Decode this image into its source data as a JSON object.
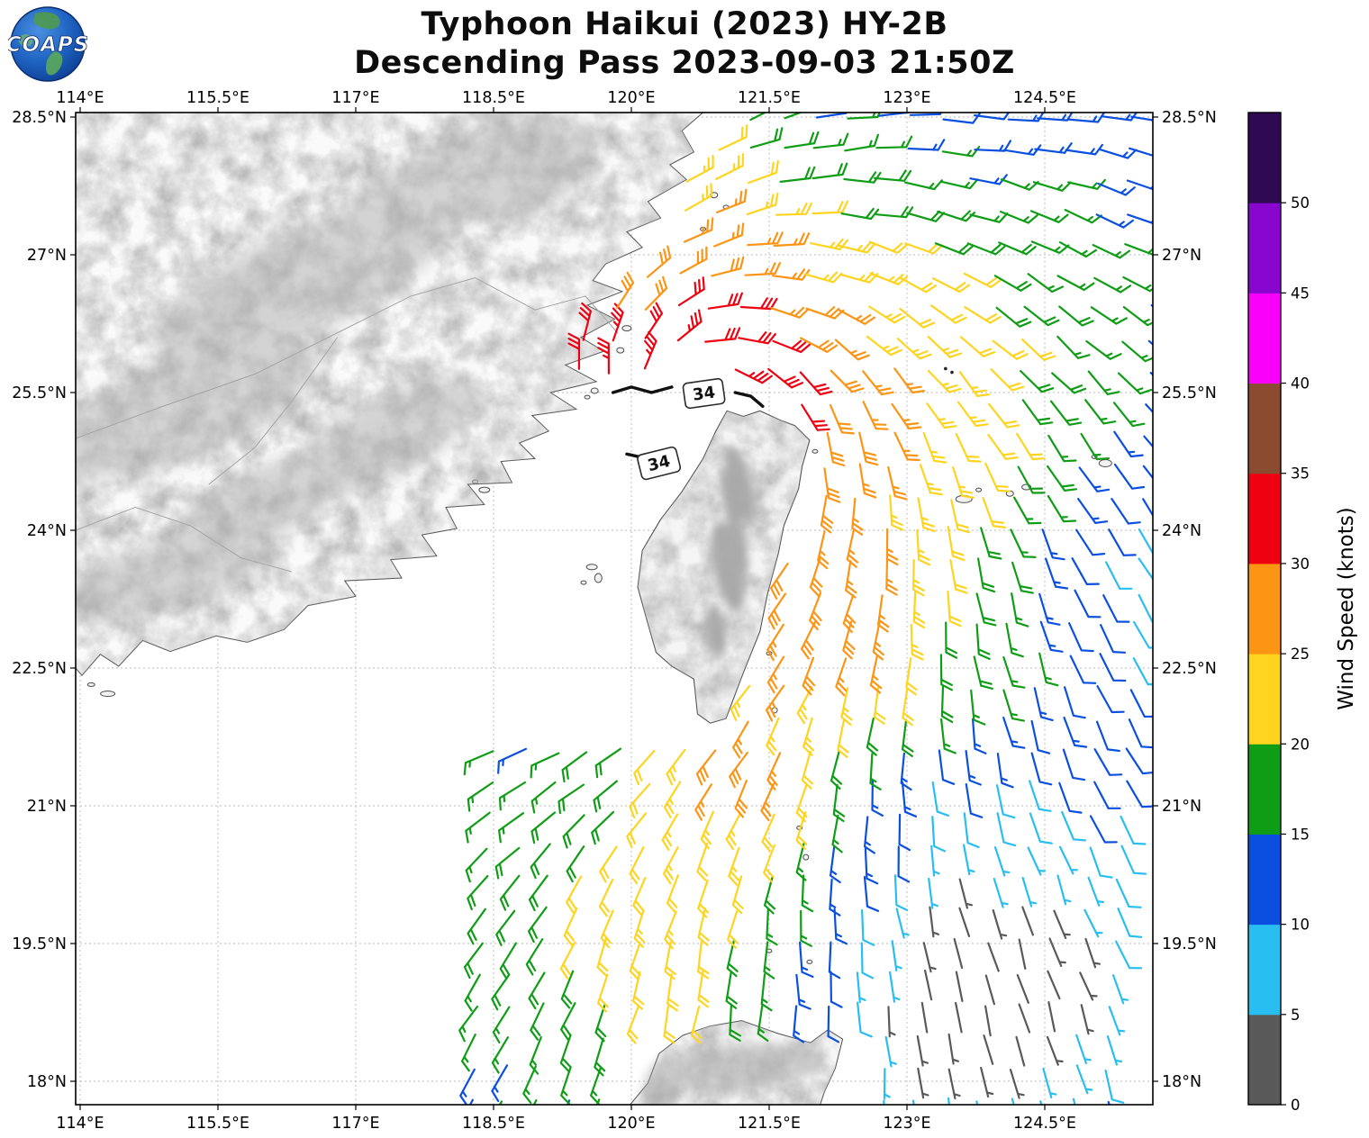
{
  "header": {
    "title_line1": "Typhoon Haikui (2023) HY-2B",
    "title_line2": "Descending Pass 2023-09-03 21:50Z",
    "logo_text": "COAPS"
  },
  "chart_data": {
    "type": "wind_barb_map",
    "title": "Typhoon Haikui (2023) HY-2B",
    "subtitle": "Descending Pass 2023-09-03 21:50Z",
    "satellite": "HY-2B",
    "pass_type": "Descending",
    "datetime_utc": "2023-09-03 21:50Z",
    "storm_name": "Haikui",
    "extent": {
      "lon_min": 113.95,
      "lon_max": 125.68,
      "lat_min": 17.75,
      "lat_max": 28.55
    },
    "axes": {
      "x": {
        "values": [
          114,
          115.5,
          117,
          118.5,
          120,
          121.5,
          123,
          124.5
        ],
        "labels": [
          "114°E",
          "115.5°E",
          "117°E",
          "118.5°E",
          "120°E",
          "121.5°E",
          "123°E",
          "124.5°E"
        ]
      },
      "y": {
        "values": [
          28.5,
          27,
          25.5,
          24,
          22.5,
          21,
          19.5,
          18
        ],
        "labels": [
          "28.5°N",
          "27°N",
          "25.5°N",
          "24°N",
          "22.5°N",
          "21°N",
          "19.5°N",
          "18°N"
        ]
      },
      "grid": "dashed"
    },
    "colorbar": {
      "label": "Wind Speed (knots)",
      "tick_values": [
        0,
        5,
        10,
        15,
        20,
        25,
        30,
        35,
        40,
        45,
        50
      ],
      "bin_size": 5,
      "bins": [
        {
          "range": "0-5",
          "color": "#595959"
        },
        {
          "range": "5-10",
          "color": "#29BEF1"
        },
        {
          "range": "10-15",
          "color": "#0A4FE0"
        },
        {
          "range": "15-20",
          "color": "#0F9D15"
        },
        {
          "range": "20-25",
          "color": "#FFD41F"
        },
        {
          "range": "25-30",
          "color": "#FC9414"
        },
        {
          "range": "30-35",
          "color": "#EE0211"
        },
        {
          "range": "35-40",
          "color": "#8B4B31"
        },
        {
          "range": "40-45",
          "color": "#FA00FA"
        },
        {
          "range": "45-50",
          "color": "#8806CE"
        },
        {
          "range": "50+",
          "color": "#2E0A55"
        }
      ]
    },
    "contours": [
      {
        "label": "34",
        "label_lon": 120.79,
        "label_lat": 25.49,
        "rot": -8,
        "paths": [
          [
            [
              119.8,
              25.5
            ],
            [
              120.0,
              25.56
            ],
            [
              120.22,
              25.5
            ],
            [
              120.44,
              25.56
            ]
          ],
          [
            [
              121.13,
              25.5
            ],
            [
              121.3,
              25.46
            ],
            [
              121.43,
              25.35
            ]
          ]
        ]
      },
      {
        "label": "34",
        "label_lon": 120.3,
        "label_lat": 24.73,
        "rot": -14,
        "paths": [
          [
            [
              119.95,
              24.83
            ],
            [
              120.13,
              24.79
            ]
          ]
        ]
      }
    ],
    "contour_specks": [
      [
        123.42,
        25.76
      ],
      [
        123.49,
        25.72
      ]
    ],
    "wind_field_model": {
      "center": [
        120.65,
        25.3
      ],
      "profile_r": [
        0,
        0.5,
        0.8,
        1.1,
        1.4,
        1.7,
        2.0,
        2.4,
        2.8,
        3.2,
        3.6,
        4.0,
        4.4,
        4.8,
        5.2,
        5.6,
        6.0,
        6.5,
        7.0,
        7.5,
        8.0,
        9.0,
        10.0,
        12.0
      ],
      "profile_kt": [
        34,
        34,
        33,
        31.5,
        29.5,
        28,
        27,
        25.5,
        24,
        22.5,
        21,
        19.5,
        18.2,
        17,
        15.5,
        14,
        12.2,
        10.9,
        9.6,
        8.5,
        7.6,
        6.2,
        5.2,
        4
      ],
      "features": [
        {
          "name": "sw-max",
          "lon": 119.95,
          "lat": 24.85,
          "amp": 5,
          "sigma": 0.45
        },
        {
          "name": "w-max",
          "lon": 119.0,
          "lat": 25.1,
          "amp": 3,
          "sigma": 0.7
        },
        {
          "name": "se-calm-a",
          "lon": 123.6,
          "lat": 19.4,
          "amp": -9.5,
          "sigma": 1.2
        },
        {
          "name": "se-calm-b",
          "lon": 124.4,
          "lat": 18.7,
          "amp": -7,
          "sigma": 0.9
        },
        {
          "name": "e-calm-strip",
          "lon": 123.35,
          "lat": 21.2,
          "amp": -5,
          "sigma": 0.65
        },
        {
          "name": "e-weak",
          "lon": 125.6,
          "lat": 23.6,
          "amp": -7,
          "sigma": 1.2
        },
        {
          "name": "n-weak",
          "lon": 122.8,
          "lat": 29.0,
          "amp": -7,
          "sigma": 1.5
        },
        {
          "name": "sw-coast-weak",
          "lon": 118.9,
          "lat": 21.9,
          "amp": -8,
          "sigma": 1.0
        },
        {
          "name": "s-monsoon",
          "lon": 119.2,
          "lat": 18.8,
          "amp": 7,
          "sigma": 2.3
        },
        {
          "name": "s-streak",
          "lon": 120.5,
          "lat": 19.2,
          "amp": 4,
          "sigma": 0.9
        },
        {
          "name": "jet1",
          "lon": 121.15,
          "lat": 21.45,
          "amp": 7,
          "sigma": 0.5
        },
        {
          "name": "jet2",
          "lon": 122.3,
          "lat": 22.9,
          "amp": 5,
          "sigma": 0.5
        },
        {
          "name": "se-corner",
          "lon": 125.7,
          "lat": 17.8,
          "amp": 9,
          "sigma": 1.6
        }
      ],
      "inflow": {
        "base": 22,
        "radial_gain": 26,
        "r0": 1,
        "r1": 6,
        "south_gain": 32,
        "s0": 2,
        "s1": 6
      },
      "grid": {
        "lon_start": 117.9,
        "lon_end": 125.75,
        "lat_start": 17.8,
        "lat_end": 28.5,
        "step": 0.345,
        "shear": 0.06
      },
      "eye_radius": 0.52,
      "swath_west_edge": [
        [
          17.75,
          118.0
        ],
        [
          19,
          118.15
        ],
        [
          20,
          118.2
        ],
        [
          21,
          118.3
        ],
        [
          22,
          118.4
        ],
        [
          23,
          118.45
        ],
        [
          24,
          118.45
        ],
        [
          24.5,
          118.6
        ],
        [
          25.2,
          119.0
        ],
        [
          25.7,
          119.1
        ],
        [
          26.1,
          119.35
        ],
        [
          26.6,
          119.9
        ],
        [
          27.2,
          120.3
        ],
        [
          27.9,
          120.6
        ],
        [
          28.55,
          121.1
        ]
      ],
      "barb_style": {
        "staff": 33,
        "full": 13,
        "half": 6.5,
        "space": 5.4,
        "width": 2.2,
        "feather_angle": 62
      }
    },
    "geography": {
      "china_coast": [
        [
          120.78,
          28.55
        ],
        [
          120.55,
          28.35
        ],
        [
          120.68,
          28.12
        ],
        [
          120.42,
          27.98
        ],
        [
          120.6,
          27.82
        ],
        [
          120.18,
          27.58
        ],
        [
          120.32,
          27.4
        ],
        [
          119.95,
          27.25
        ],
        [
          120.12,
          27.08
        ],
        [
          119.72,
          26.9
        ],
        [
          119.58,
          26.72
        ],
        [
          119.9,
          26.6
        ],
        [
          119.52,
          26.45
        ],
        [
          119.82,
          26.3
        ],
        [
          119.45,
          26.1
        ],
        [
          119.7,
          25.95
        ],
        [
          119.28,
          25.8
        ],
        [
          119.62,
          25.62
        ],
        [
          119.12,
          25.5
        ],
        [
          119.4,
          25.32
        ],
        [
          118.92,
          25.25
        ],
        [
          119.1,
          25.08
        ],
        [
          118.78,
          24.95
        ],
        [
          118.95,
          24.78
        ],
        [
          118.58,
          24.75
        ],
        [
          118.7,
          24.52
        ],
        [
          118.22,
          24.5
        ],
        [
          118.4,
          24.28
        ],
        [
          117.98,
          24.25
        ],
        [
          118.1,
          24.02
        ],
        [
          117.72,
          23.95
        ],
        [
          117.88,
          23.72
        ],
        [
          117.38,
          23.68
        ],
        [
          117.5,
          23.48
        ],
        [
          116.88,
          23.45
        ],
        [
          117.0,
          23.28
        ],
        [
          116.48,
          23.18
        ],
        [
          116.22,
          22.92
        ],
        [
          115.82,
          22.78
        ],
        [
          115.48,
          22.85
        ],
        [
          114.98,
          22.68
        ],
        [
          114.68,
          22.8
        ],
        [
          114.42,
          22.52
        ],
        [
          114.22,
          22.65
        ],
        [
          114.02,
          22.42
        ],
        [
          113.95,
          22.5
        ]
      ],
      "taiwan": [
        [
          121.04,
          25.3
        ],
        [
          121.22,
          25.24
        ],
        [
          121.4,
          25.3
        ],
        [
          121.62,
          25.2
        ],
        [
          121.78,
          25.14
        ],
        [
          121.94,
          24.98
        ],
        [
          121.86,
          24.7
        ],
        [
          121.82,
          24.45
        ],
        [
          121.66,
          24.05
        ],
        [
          121.6,
          23.75
        ],
        [
          121.48,
          23.3
        ],
        [
          121.4,
          22.9
        ],
        [
          121.22,
          22.45
        ],
        [
          121.03,
          21.95
        ],
        [
          120.86,
          21.9
        ],
        [
          120.72,
          22.0
        ],
        [
          120.68,
          22.38
        ],
        [
          120.44,
          22.52
        ],
        [
          120.27,
          22.67
        ],
        [
          120.17,
          23.02
        ],
        [
          120.07,
          23.38
        ],
        [
          120.12,
          23.78
        ],
        [
          120.32,
          24.12
        ],
        [
          120.55,
          24.42
        ],
        [
          120.78,
          24.78
        ],
        [
          120.92,
          25.08
        ]
      ],
      "luzon": [
        [
          119.95,
          17.7
        ],
        [
          120.18,
          17.98
        ],
        [
          120.3,
          18.3
        ],
        [
          120.56,
          18.5
        ],
        [
          120.85,
          18.6
        ],
        [
          121.2,
          18.66
        ],
        [
          121.6,
          18.52
        ],
        [
          121.95,
          18.42
        ],
        [
          122.14,
          18.56
        ],
        [
          122.3,
          18.46
        ],
        [
          122.22,
          18.14
        ],
        [
          122.1,
          17.88
        ],
        [
          122.04,
          17.7
        ]
      ],
      "islands": [
        [
          119.95,
          26.2,
          5,
          3
        ],
        [
          119.88,
          25.96,
          4,
          3
        ],
        [
          119.6,
          25.52,
          4,
          3
        ],
        [
          119.52,
          25.45,
          3,
          2
        ],
        [
          118.4,
          24.44,
          6,
          3
        ],
        [
          118.3,
          24.53,
          3,
          2
        ],
        [
          120.9,
          27.65,
          4,
          3
        ],
        [
          121.03,
          27.52,
          3,
          2
        ],
        [
          120.78,
          27.28,
          3,
          2
        ],
        [
          119.57,
          23.6,
          6,
          3
        ],
        [
          119.64,
          23.48,
          4,
          5
        ],
        [
          119.48,
          23.43,
          3,
          2
        ],
        [
          122.0,
          24.86,
          3,
          2
        ],
        [
          121.5,
          22.66,
          3,
          2
        ],
        [
          121.56,
          22.04,
          3,
          3
        ],
        [
          123.62,
          24.34,
          9,
          4
        ],
        [
          123.78,
          24.44,
          3,
          2
        ],
        [
          124.12,
          24.4,
          4,
          3
        ],
        [
          124.3,
          24.47,
          5,
          3
        ],
        [
          125.16,
          24.73,
          7,
          4
        ],
        [
          125.04,
          24.8,
          3,
          2
        ],
        [
          121.5,
          19.42,
          3,
          2
        ],
        [
          121.94,
          19.3,
          3,
          2
        ],
        [
          121.9,
          20.44,
          3,
          3
        ],
        [
          121.83,
          20.76,
          3,
          2
        ],
        [
          114.3,
          22.22,
          8,
          3
        ],
        [
          114.12,
          22.32,
          4,
          2
        ]
      ],
      "borders": [
        [
          [
            113.95,
            25.0
          ],
          [
            114.9,
            25.35
          ],
          [
            115.9,
            25.7
          ],
          [
            116.8,
            26.15
          ],
          [
            117.6,
            26.55
          ],
          [
            118.3,
            26.75
          ],
          [
            118.95,
            26.4
          ],
          [
            119.5,
            26.55
          ],
          [
            119.85,
            26.15
          ]
        ],
        [
          [
            113.95,
            24.0
          ],
          [
            114.6,
            24.25
          ],
          [
            115.2,
            24.05
          ],
          [
            115.75,
            23.7
          ],
          [
            116.3,
            23.55
          ]
        ],
        [
          [
            116.8,
            26.1
          ],
          [
            116.3,
            25.4
          ],
          [
            115.9,
            24.9
          ],
          [
            115.4,
            24.5
          ]
        ]
      ],
      "relief_blobs": [
        [
          116.4,
          26.7,
          180,
          60,
          25
        ],
        [
          117.9,
          27.7,
          150,
          50,
          30
        ],
        [
          115.1,
          25.3,
          160,
          55,
          20
        ],
        [
          117.3,
          25.0,
          120,
          45,
          28
        ],
        [
          114.9,
          23.5,
          120,
          40,
          15
        ],
        [
          119.0,
          27.9,
          80,
          40,
          35
        ],
        [
          116.0,
          24.3,
          100,
          40,
          22
        ]
      ],
      "taiwan_ridge": [
        [
          121.18,
          24.5,
          13,
          45,
          15
        ],
        [
          121.05,
          23.6,
          16,
          52,
          12
        ],
        [
          120.92,
          22.9,
          11,
          30,
          8
        ],
        [
          121.12,
          24.1,
          8,
          58,
          13
        ]
      ],
      "luzon_blobs": [
        [
          121.15,
          18.15,
          100,
          26,
          5
        ],
        [
          120.35,
          17.95,
          35,
          22,
          70
        ]
      ]
    }
  }
}
